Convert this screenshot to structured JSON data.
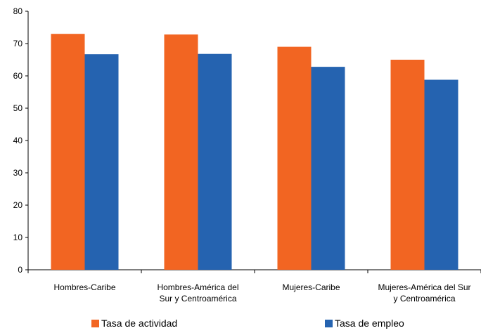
{
  "chart_data": {
    "type": "bar",
    "title": "",
    "xlabel": "",
    "ylabel": "",
    "ylim": [
      0,
      80
    ],
    "yticks": [
      0,
      10,
      20,
      30,
      40,
      50,
      60,
      70,
      80
    ],
    "grid": false,
    "legend_position": "bottom",
    "categories": [
      [
        "Hombres-Caribe"
      ],
      [
        "Hombres-América del",
        "Sur y Centroamérica"
      ],
      [
        "Mujeres-Caribe"
      ],
      [
        "Mujeres-América del Sur",
        "y Centroamérica"
      ]
    ],
    "series": [
      {
        "name": "Tasa de actividad",
        "color": "#F26522",
        "values": [
          73,
          72.8,
          69,
          65
        ]
      },
      {
        "name": "Tasa de empleo",
        "color": "#2563B0",
        "values": [
          66.7,
          66.8,
          62.8,
          58.8
        ]
      }
    ]
  }
}
